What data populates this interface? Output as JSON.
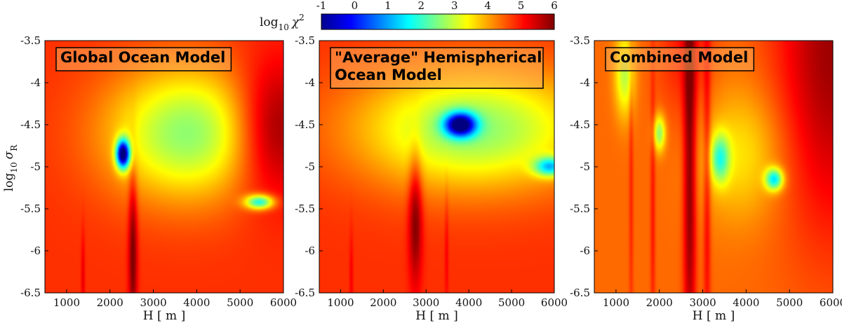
{
  "colorbar": {
    "label_main": "log",
    "label_sub": "10",
    "label_symbol": "χ",
    "label_sup": "2",
    "ticks": [
      "-1",
      "0",
      "1",
      "2",
      "3",
      "4",
      "5",
      "6"
    ],
    "range": [
      -1,
      6
    ],
    "colormap": "jet"
  },
  "shared_axes": {
    "xlabel": "H [ m ]",
    "ylabel_main": "log",
    "ylabel_sub": "10",
    "ylabel_symbol": "σ",
    "ylabel_symbol_sub": "R",
    "xlim": [
      500,
      6000
    ],
    "ylim": [
      -6.5,
      -3.5
    ],
    "xticks": [
      "1000",
      "2000",
      "3000",
      "4000",
      "5000",
      "6000"
    ],
    "yticks": [
      "-3.5",
      "-4",
      "-4.5",
      "-5",
      "-5.5",
      "-6",
      "-6.5"
    ]
  },
  "chart_data": [
    {
      "type": "heatmap",
      "title_lines": [
        "Global Ocean Model"
      ],
      "xlabel": "H [ m ]",
      "ylabel": "log10 σR",
      "xlim": [
        500,
        6000
      ],
      "ylim": [
        -6.5,
        -3.5
      ],
      "z_range": [
        -1,
        6
      ],
      "background": 4.8,
      "features": [
        {
          "kind": "low",
          "x": 2300,
          "y": -4.85,
          "sx": 110,
          "sy": 0.12,
          "depth": 5.4
        },
        {
          "kind": "low",
          "x": 5450,
          "y": -5.42,
          "sx": 230,
          "sy": 0.06,
          "depth": 3.0
        },
        {
          "kind": "low",
          "x": 3800,
          "y": -4.6,
          "sx": 1300,
          "sy": 0.55,
          "depth": 2.2
        },
        {
          "kind": "high",
          "x": 5750,
          "y": -4.55,
          "sx": 650,
          "sy": 0.55,
          "amp": 1.5
        },
        {
          "kind": "high",
          "x": 2530,
          "y": -6.0,
          "sx": 70,
          "sy": 0.7,
          "amp": 1.3
        },
        {
          "kind": "high",
          "x": 1380,
          "y": -6.3,
          "sx": 30,
          "sy": 0.4,
          "amp": 0.5
        }
      ]
    },
    {
      "type": "heatmap",
      "title_lines": [
        "\"Average\" Hemispherical",
        "Ocean Model"
      ],
      "xlabel": "H [ m ]",
      "ylabel": "",
      "xlim": [
        500,
        6000
      ],
      "ylim": [
        -6.5,
        -3.5
      ],
      "z_range": [
        -1,
        6
      ],
      "background": 4.8,
      "features": [
        {
          "kind": "low",
          "x": 3800,
          "y": -4.5,
          "sx": 260,
          "sy": 0.1,
          "depth": 4.6
        },
        {
          "kind": "low",
          "x": 5900,
          "y": -5.0,
          "sx": 260,
          "sy": 0.08,
          "depth": 2.8
        },
        {
          "kind": "low",
          "x": 4100,
          "y": -4.55,
          "sx": 1900,
          "sy": 0.5,
          "depth": 2.2
        },
        {
          "kind": "high",
          "x": 2750,
          "y": -5.6,
          "sx": 110,
          "sy": 0.55,
          "amp": 1.3
        },
        {
          "kind": "high",
          "x": 3480,
          "y": -6.0,
          "sx": 30,
          "sy": 0.5,
          "amp": 0.4
        },
        {
          "kind": "high",
          "x": 1250,
          "y": -6.3,
          "sx": 30,
          "sy": 0.4,
          "amp": 0.4
        }
      ]
    },
    {
      "type": "heatmap",
      "title_lines": [
        "Combined Model"
      ],
      "xlabel": "H [ m ]",
      "ylabel": "",
      "xlim": [
        500,
        6000
      ],
      "ylim": [
        -6.5,
        -3.5
      ],
      "z_range": [
        -1,
        6
      ],
      "background": 4.4,
      "features": [
        {
          "kind": "low",
          "x": 4650,
          "y": -5.15,
          "sx": 140,
          "sy": 0.09,
          "depth": 2.8
        },
        {
          "kind": "low",
          "x": 3400,
          "y": -4.9,
          "sx": 150,
          "sy": 0.2,
          "depth": 2.0
        },
        {
          "kind": "low",
          "x": 2000,
          "y": -4.6,
          "sx": 100,
          "sy": 0.15,
          "depth": 1.8
        },
        {
          "kind": "low",
          "x": 1200,
          "y": -3.9,
          "sx": 160,
          "sy": 0.35,
          "depth": 1.5
        },
        {
          "kind": "low",
          "x": 3900,
          "y": -4.85,
          "sx": 700,
          "sy": 0.55,
          "depth": 0.9
        },
        {
          "kind": "high",
          "x": 2700,
          "y": -5.0,
          "sx": 100,
          "sy": 1.8,
          "amp": 1.6
        },
        {
          "kind": "high",
          "x": 3100,
          "y": -5.2,
          "sx": 60,
          "sy": 1.6,
          "amp": 0.8
        },
        {
          "kind": "high",
          "x": 1850,
          "y": -5.5,
          "sx": 40,
          "sy": 1.3,
          "amp": 0.6
        },
        {
          "kind": "high",
          "x": 1350,
          "y": -5.3,
          "sx": 35,
          "sy": 1.3,
          "amp": 0.5
        },
        {
          "kind": "high",
          "x": 6000,
          "y": -3.6,
          "sx": 900,
          "sy": 1.5,
          "amp": 1.4
        },
        {
          "kind": "high",
          "x": 2600,
          "y": -3.6,
          "sx": 450,
          "sy": 0.6,
          "amp": 0.6
        }
      ]
    }
  ]
}
